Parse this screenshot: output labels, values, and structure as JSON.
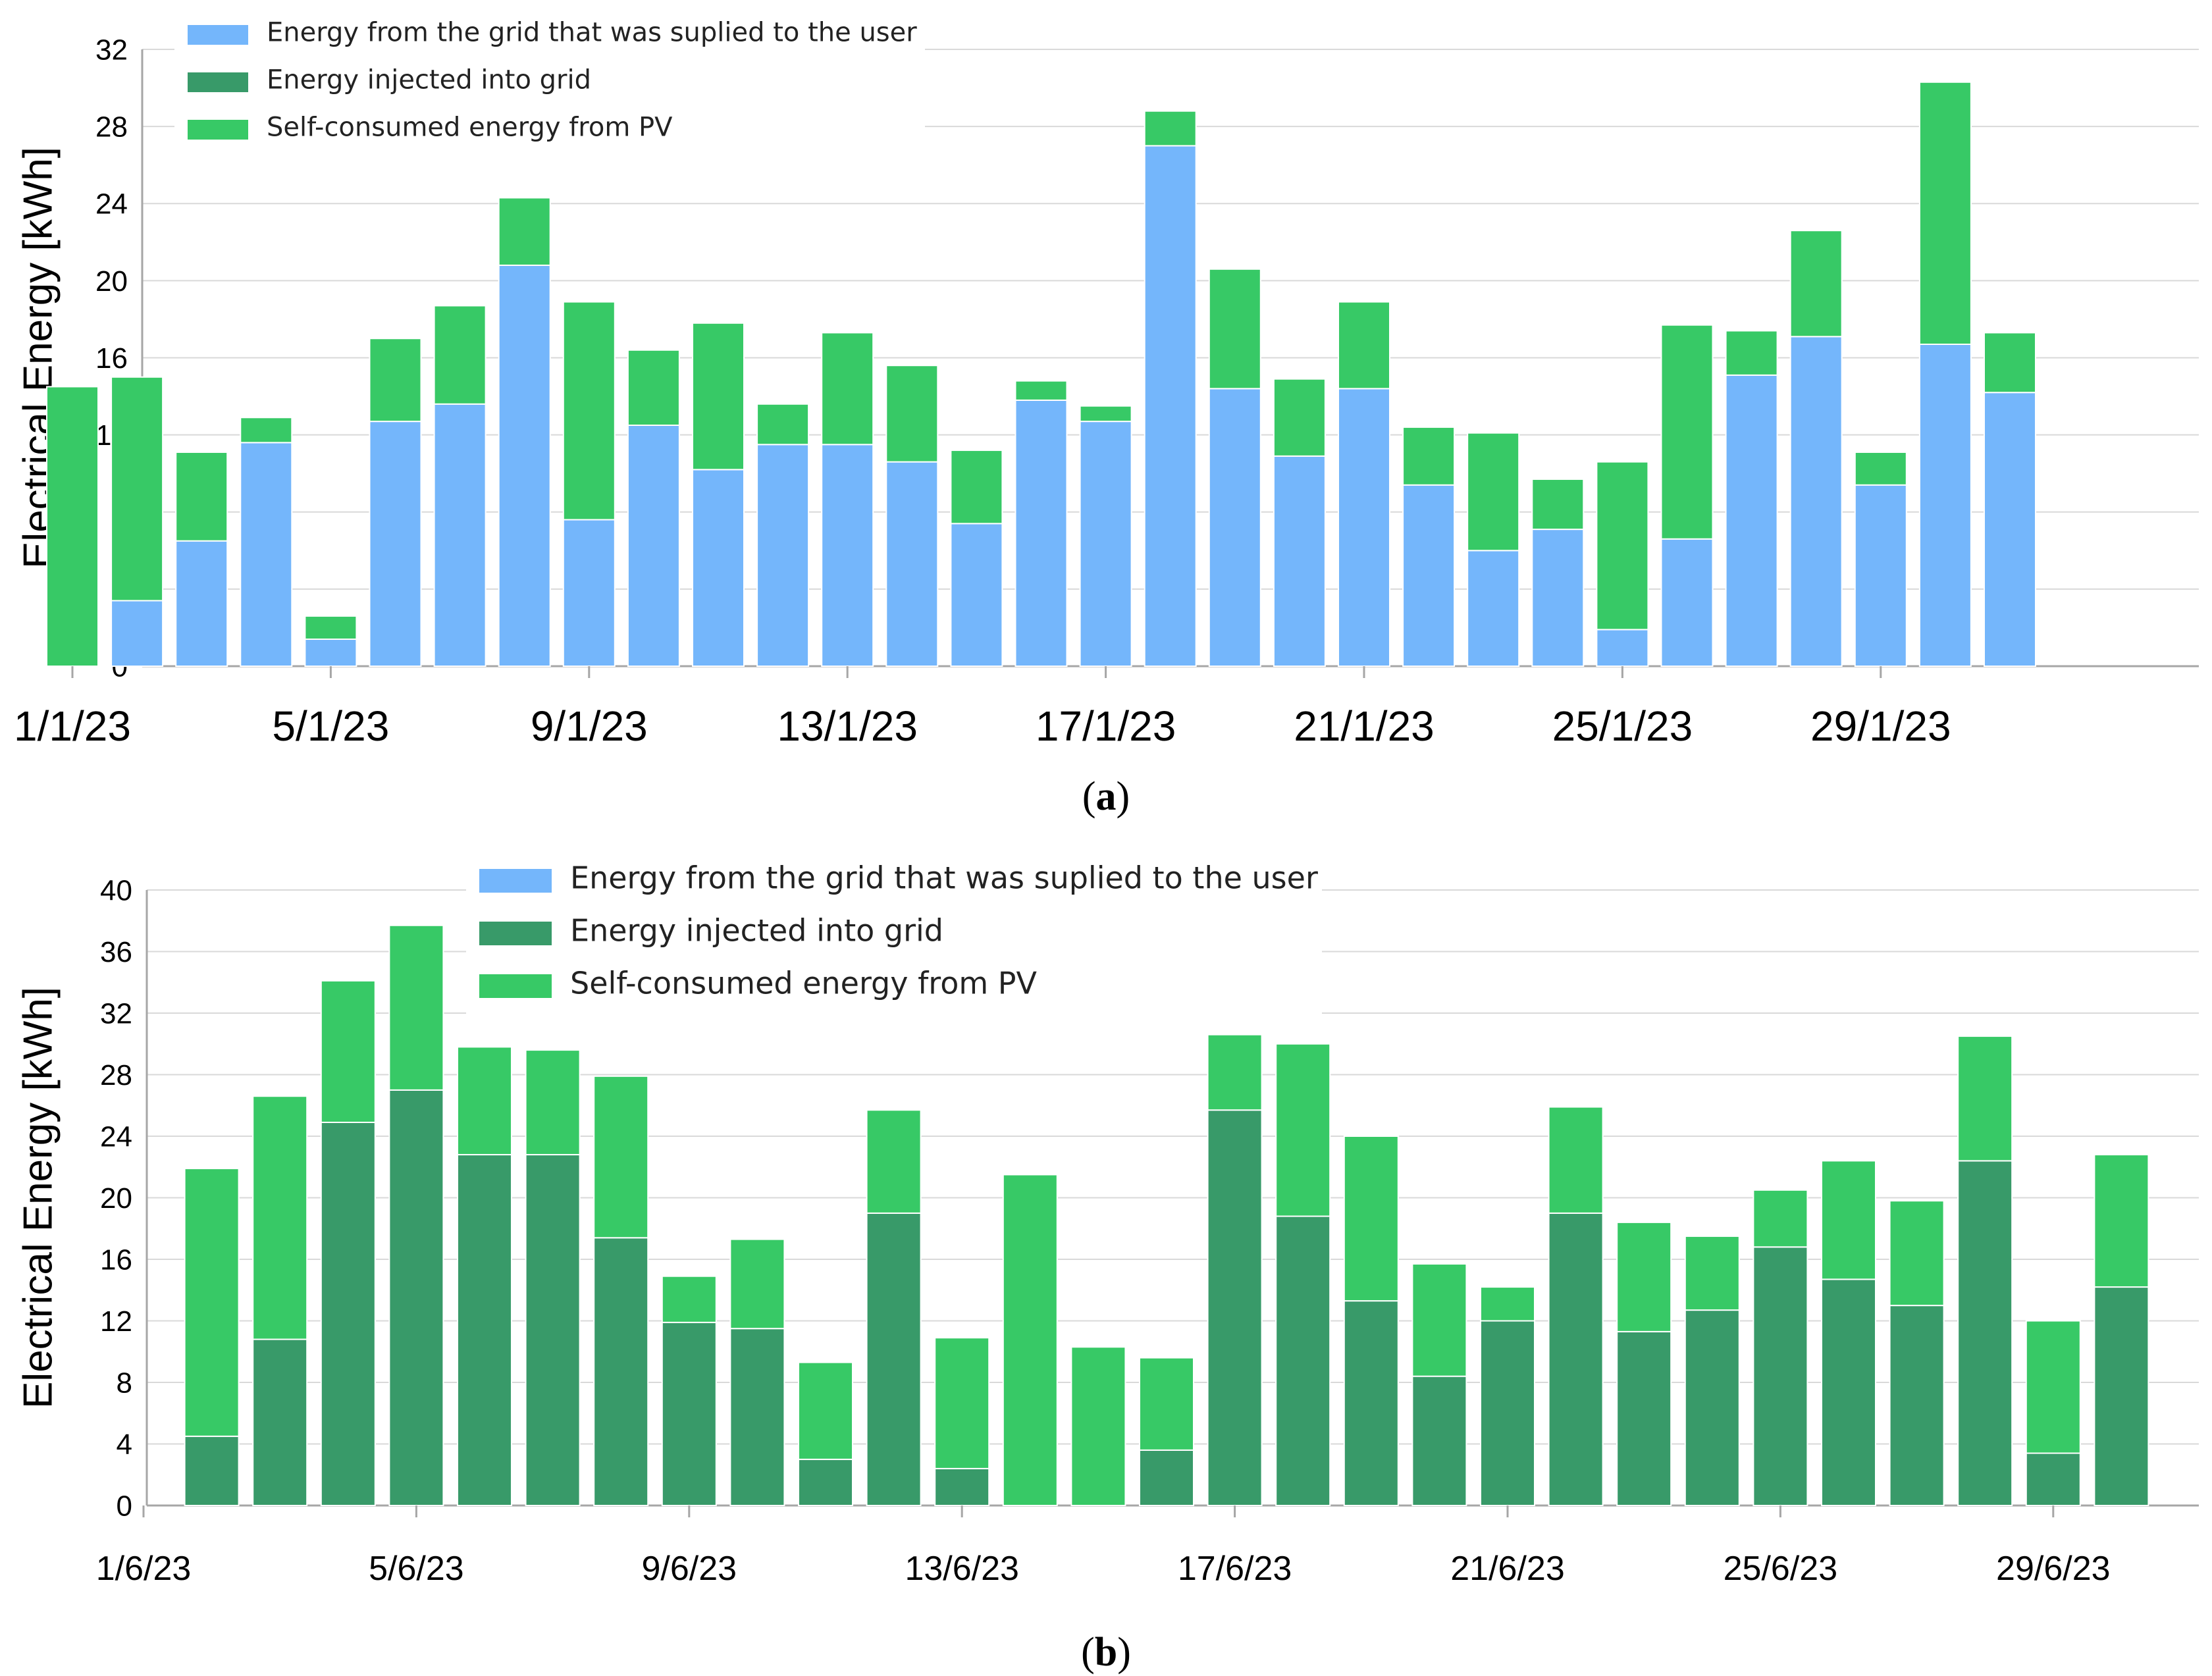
{
  "colors": {
    "grid_supply": "#74b6fb",
    "injected": "#389a69",
    "self_consumed": "#37c966",
    "grid_line": "#d9d9d9",
    "axis": "#a6a6a6"
  },
  "chart_data": [
    {
      "id": "a",
      "type": "bar",
      "stacked": true,
      "caption_letter": "a",
      "ylabel": "Electrical Energy [kWh]",
      "ylim": [
        0,
        32
      ],
      "yticks": [
        0,
        4,
        8,
        12,
        16,
        20,
        24,
        28,
        32
      ],
      "grid": true,
      "legend_position": "top-left",
      "x_tick_labels": [
        "1/1/23",
        "5/1/23",
        "9/1/23",
        "13/1/23",
        "17/1/23",
        "21/1/23",
        "25/1/23",
        "29/1/23"
      ],
      "x_tick_days": [
        1,
        5,
        9,
        13,
        17,
        21,
        25,
        29
      ],
      "days": [
        1,
        2,
        3,
        4,
        5,
        6,
        7,
        8,
        9,
        10,
        11,
        12,
        13,
        14,
        15,
        16,
        17,
        18,
        19,
        20,
        21,
        22,
        23,
        24,
        25,
        26,
        27,
        28,
        29,
        30,
        31
      ],
      "series": [
        {
          "name": "Energy from the grid that was suplied to the user",
          "color_key": "grid_supply",
          "values": [
            0,
            3.4,
            6.5,
            11.6,
            1.4,
            12.7,
            13.6,
            20.8,
            7.6,
            12.5,
            10.2,
            11.5,
            11.5,
            10.6,
            7.4,
            13.8,
            12.7,
            27.0,
            14.4,
            10.9,
            14.4,
            9.4,
            6.0,
            7.1,
            1.9,
            6.6,
            15.1,
            17.1,
            9.4,
            16.7,
            14.2
          ]
        },
        {
          "name": "Energy injected into grid",
          "color_key": "injected",
          "values": [
            0,
            0,
            0,
            0,
            0,
            0,
            0,
            0,
            0,
            0,
            0,
            0,
            0,
            0,
            0,
            0,
            0,
            0,
            0,
            0,
            0,
            0,
            0,
            0,
            0,
            0,
            0,
            0,
            0,
            0,
            0
          ]
        },
        {
          "name": "Self-consumed energy from PV",
          "color_key": "self_consumed",
          "values": [
            14.5,
            11.6,
            4.6,
            1.3,
            1.2,
            4.3,
            5.1,
            3.5,
            11.3,
            3.9,
            7.6,
            2.1,
            5.8,
            5.0,
            3.8,
            1.0,
            0.8,
            1.8,
            6.2,
            4.0,
            4.5,
            3.0,
            6.1,
            2.6,
            8.7,
            11.1,
            2.3,
            5.5,
            1.7,
            13.6,
            3.1
          ]
        }
      ]
    },
    {
      "id": "b",
      "type": "bar",
      "stacked": true,
      "caption_letter": "b",
      "ylabel": "Electrical Energy [kWh]",
      "ylim": [
        0,
        40
      ],
      "yticks": [
        0,
        4,
        8,
        12,
        16,
        20,
        24,
        28,
        32,
        36,
        40
      ],
      "grid": true,
      "legend_position": "top-center",
      "x_tick_labels": [
        "1/6/23",
        "5/6/23",
        "9/6/23",
        "13/6/23",
        "17/6/23",
        "21/6/23",
        "25/6/23",
        "29/6/23"
      ],
      "x_tick_days": [
        1,
        5,
        9,
        13,
        17,
        21,
        25,
        29
      ],
      "days": [
        2,
        3,
        4,
        5,
        6,
        7,
        8,
        9,
        10,
        11,
        12,
        13,
        14,
        15,
        16,
        17,
        18,
        19,
        20,
        21,
        22,
        23,
        24,
        25,
        26,
        27,
        28,
        29,
        30
      ],
      "series": [
        {
          "name": "Energy from the grid that was suplied to the user",
          "color_key": "grid_supply",
          "values": [
            0,
            0,
            0,
            0,
            0,
            0,
            0,
            0,
            0,
            0,
            0,
            0,
            0,
            0,
            0,
            0,
            0,
            0,
            0,
            0,
            0,
            0,
            0,
            0,
            0,
            0,
            0,
            0,
            0
          ]
        },
        {
          "name": "Energy injected into grid",
          "color_key": "injected",
          "values": [
            4.5,
            10.8,
            24.9,
            27.0,
            22.8,
            22.8,
            17.4,
            11.9,
            11.5,
            3.0,
            19.0,
            2.4,
            0,
            0,
            3.6,
            25.7,
            18.8,
            13.3,
            8.4,
            12.0,
            19.0,
            11.3,
            12.7,
            16.8,
            14.7,
            13.0,
            22.4,
            3.4,
            14.2
          ]
        },
        {
          "name": "Self-consumed energy from PV",
          "color_key": "self_consumed",
          "values": [
            17.4,
            15.8,
            9.2,
            10.7,
            7.0,
            6.8,
            10.5,
            3.0,
            5.8,
            6.3,
            6.7,
            8.5,
            21.5,
            10.3,
            6.0,
            4.9,
            11.2,
            10.7,
            7.3,
            2.2,
            6.9,
            7.1,
            4.8,
            3.7,
            7.7,
            6.8,
            8.1,
            8.6,
            8.6
          ]
        }
      ]
    }
  ]
}
